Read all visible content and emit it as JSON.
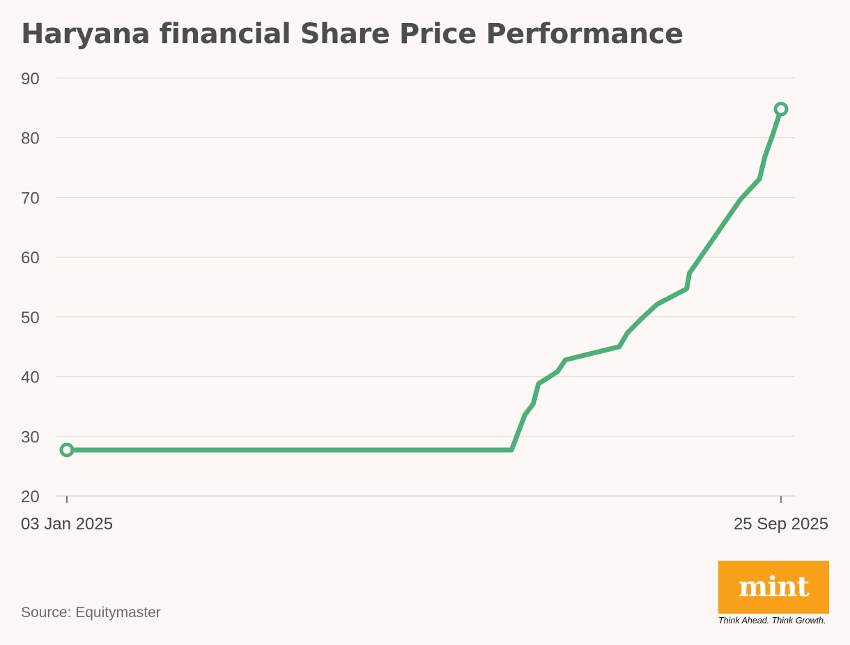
{
  "title": "Haryana financial Share Price Performance",
  "source": "Source: Equitymaster",
  "logo": {
    "wordmark": "mint",
    "tagline": "Think Ahead. Think Growth.",
    "color": "#f9a01b"
  },
  "chart_data": {
    "type": "line",
    "title": "Haryana financial Share Price Performance",
    "xlabel": "",
    "ylabel": "",
    "ylim": [
      20,
      90
    ],
    "yticks": [
      20,
      30,
      40,
      50,
      60,
      70,
      80,
      90
    ],
    "x_tick_labels": [
      "03 Jan 2025",
      "25 Sep 2025"
    ],
    "grid": true,
    "line_color": "#4caf7d",
    "x": [
      "2025-01-03",
      "2025-06-17",
      "2025-06-22",
      "2025-06-25",
      "2025-06-27",
      "2025-07-04",
      "2025-07-07",
      "2025-07-27",
      "2025-07-30",
      "2025-08-04",
      "2025-08-10",
      "2025-08-21",
      "2025-08-22",
      "2025-09-10",
      "2025-09-17",
      "2025-09-19",
      "2025-09-22",
      "2025-09-25"
    ],
    "series": [
      {
        "values": [
          27.7,
          27.7,
          33.6,
          35.4,
          38.8,
          40.8,
          42.8,
          45.0,
          47.3,
          49.6,
          52.1,
          54.7,
          57.3,
          69.7,
          73.1,
          76.8,
          80.6,
          84.8
        ]
      }
    ]
  }
}
